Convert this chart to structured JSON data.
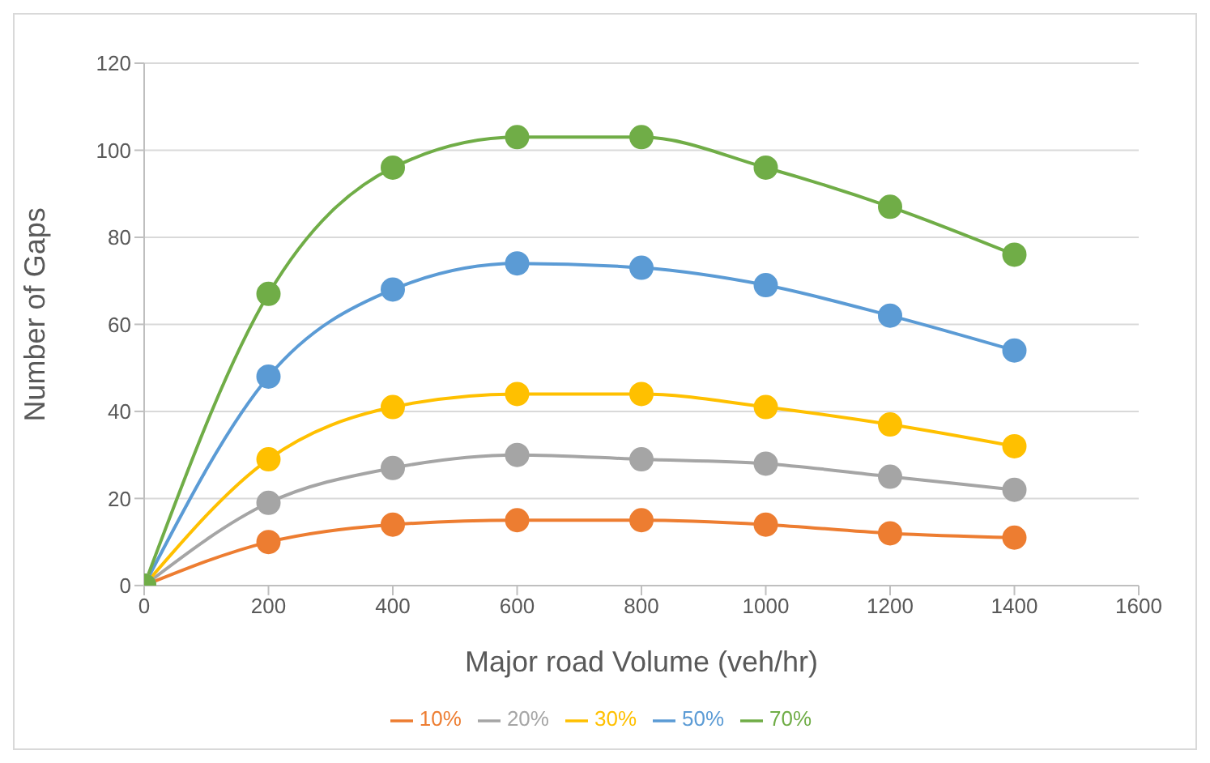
{
  "chart_data": {
    "type": "line",
    "xlabel": "Major road Volume (veh/hr)",
    "ylabel": "Number of Gaps",
    "x": [
      0,
      200,
      400,
      600,
      800,
      1000,
      1200,
      1400
    ],
    "series": [
      {
        "name": "10%",
        "color": "#ed7d31",
        "values": [
          0,
          10,
          14,
          15,
          15,
          14,
          12,
          11
        ]
      },
      {
        "name": "20%",
        "color": "#a5a5a5",
        "values": [
          0,
          19,
          27,
          30,
          29,
          28,
          25,
          22
        ]
      },
      {
        "name": "30%",
        "color": "#ffc000",
        "values": [
          0,
          29,
          41,
          44,
          44,
          41,
          37,
          32
        ]
      },
      {
        "name": "50%",
        "color": "#5b9bd5",
        "values": [
          0,
          48,
          68,
          74,
          73,
          69,
          62,
          54
        ]
      },
      {
        "name": "70%",
        "color": "#70ad47",
        "values": [
          0,
          67,
          96,
          103,
          103,
          96,
          87,
          76
        ]
      }
    ],
    "xlim": [
      0,
      1600
    ],
    "xticks": [
      0,
      200,
      400,
      600,
      800,
      1000,
      1200,
      1400,
      1600
    ],
    "ylim": [
      0,
      120
    ],
    "yticks": [
      0,
      20,
      40,
      60,
      80,
      100,
      120
    ],
    "grid": "y",
    "legend": "bottom",
    "marker": "circle",
    "line_style": "solid"
  }
}
